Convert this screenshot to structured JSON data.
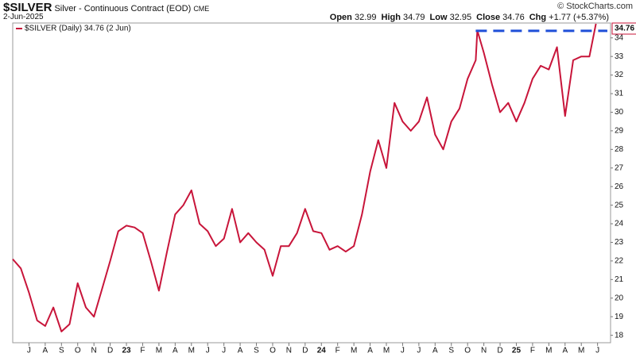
{
  "chart_data": {
    "type": "line",
    "title": "$SILVER",
    "subtitle": "Silver - Continuous Contract (EOD)",
    "exchange": "CME",
    "date": "2-Jun-2025",
    "credit": "© StockCharts.com",
    "quote": [
      {
        "label": "Open",
        "value": 32.99
      },
      {
        "label": "High",
        "value": 34.79
      },
      {
        "label": "Low",
        "value": 32.95
      },
      {
        "label": "Close",
        "value": 34.76
      },
      {
        "label": "Chg",
        "value": "+1.77 (+5.37%)"
      }
    ],
    "x": [
      -1,
      -0.5,
      0,
      0.5,
      1,
      1.5,
      2,
      2.5,
      3,
      3.5,
      4,
      4.5,
      5,
      5.5,
      6,
      6.5,
      7,
      7.5,
      8,
      8.5,
      9,
      9.5,
      10,
      10.5,
      11,
      11.5,
      12,
      12.5,
      13,
      13.5,
      14,
      14.5,
      15,
      15.5,
      16,
      16.5,
      17,
      17.5,
      18,
      18.5,
      19,
      19.5,
      20,
      20.5,
      21,
      21.5,
      22,
      22.5,
      23,
      23.5,
      24,
      24.5,
      25,
      25.5,
      26,
      26.5,
      27,
      27.5,
      27.6,
      28,
      28.5,
      29,
      29.5,
      30,
      30.5,
      31,
      31.5,
      32,
      32.5,
      33,
      33.5,
      34,
      34.5,
      34.9
    ],
    "series": [
      {
        "name": "$SILVER (Daily) 34.76 (2 Jun)",
        "color": "#c8153a",
        "values": [
          22.1,
          21.6,
          20.3,
          18.8,
          18.5,
          19.5,
          18.2,
          18.6,
          20.8,
          19.5,
          19.0,
          20.5,
          22.0,
          23.6,
          23.9,
          23.8,
          23.5,
          22.0,
          20.4,
          22.5,
          24.5,
          25.0,
          25.8,
          24.0,
          23.6,
          22.8,
          23.2,
          24.8,
          23.0,
          23.5,
          23.0,
          22.6,
          21.2,
          22.8,
          22.8,
          23.5,
          24.8,
          23.6,
          23.5,
          22.6,
          22.8,
          22.5,
          22.8,
          24.5,
          26.8,
          28.5,
          27.0,
          30.5,
          29.5,
          29.0,
          29.5,
          30.8,
          28.8,
          28.0,
          29.5,
          30.2,
          31.8,
          32.8,
          34.4,
          33.2,
          31.5,
          30.0,
          30.5,
          29.5,
          30.5,
          31.8,
          32.5,
          32.3,
          33.5,
          29.8,
          32.8,
          33.0,
          33.0,
          34.76
        ]
      }
    ],
    "reference_line": {
      "value": 34.76,
      "x_start": 27.5,
      "color": "#1f4fd8"
    },
    "xlim": [
      -1.0,
      35.8
    ],
    "xticks": [
      {
        "value": 0,
        "label": "J"
      },
      {
        "value": 1,
        "label": "A"
      },
      {
        "value": 2,
        "label": "S"
      },
      {
        "value": 3,
        "label": "O"
      },
      {
        "value": 4,
        "label": "N"
      },
      {
        "value": 5,
        "label": "D"
      },
      {
        "value": 6,
        "label": "23"
      },
      {
        "value": 7,
        "label": "F"
      },
      {
        "value": 8,
        "label": "M"
      },
      {
        "value": 9,
        "label": "A"
      },
      {
        "value": 10,
        "label": "M"
      },
      {
        "value": 11,
        "label": "J"
      },
      {
        "value": 12,
        "label": "J"
      },
      {
        "value": 13,
        "label": "A"
      },
      {
        "value": 14,
        "label": "S"
      },
      {
        "value": 15,
        "label": "O"
      },
      {
        "value": 16,
        "label": "N"
      },
      {
        "value": 17,
        "label": "D"
      },
      {
        "value": 18,
        "label": "24"
      },
      {
        "value": 19,
        "label": "F"
      },
      {
        "value": 20,
        "label": "M"
      },
      {
        "value": 21,
        "label": "A"
      },
      {
        "value": 22,
        "label": "M"
      },
      {
        "value": 23,
        "label": "J"
      },
      {
        "value": 24,
        "label": "J"
      },
      {
        "value": 25,
        "label": "A"
      },
      {
        "value": 26,
        "label": "S"
      },
      {
        "value": 27,
        "label": "O"
      },
      {
        "value": 28,
        "label": "N"
      },
      {
        "value": 29,
        "label": "D"
      },
      {
        "value": 30,
        "label": "25"
      },
      {
        "value": 31,
        "label": "F"
      },
      {
        "value": 32,
        "label": "M"
      },
      {
        "value": 33,
        "label": "A"
      },
      {
        "value": 34,
        "label": "M"
      },
      {
        "value": 35,
        "label": "J"
      }
    ],
    "ylim": [
      17.6,
      34.8
    ],
    "yticks": [
      18,
      19,
      20,
      21,
      22,
      23,
      24,
      25,
      26,
      27,
      28,
      29,
      30,
      31,
      32,
      33,
      34
    ],
    "grid": false
  }
}
